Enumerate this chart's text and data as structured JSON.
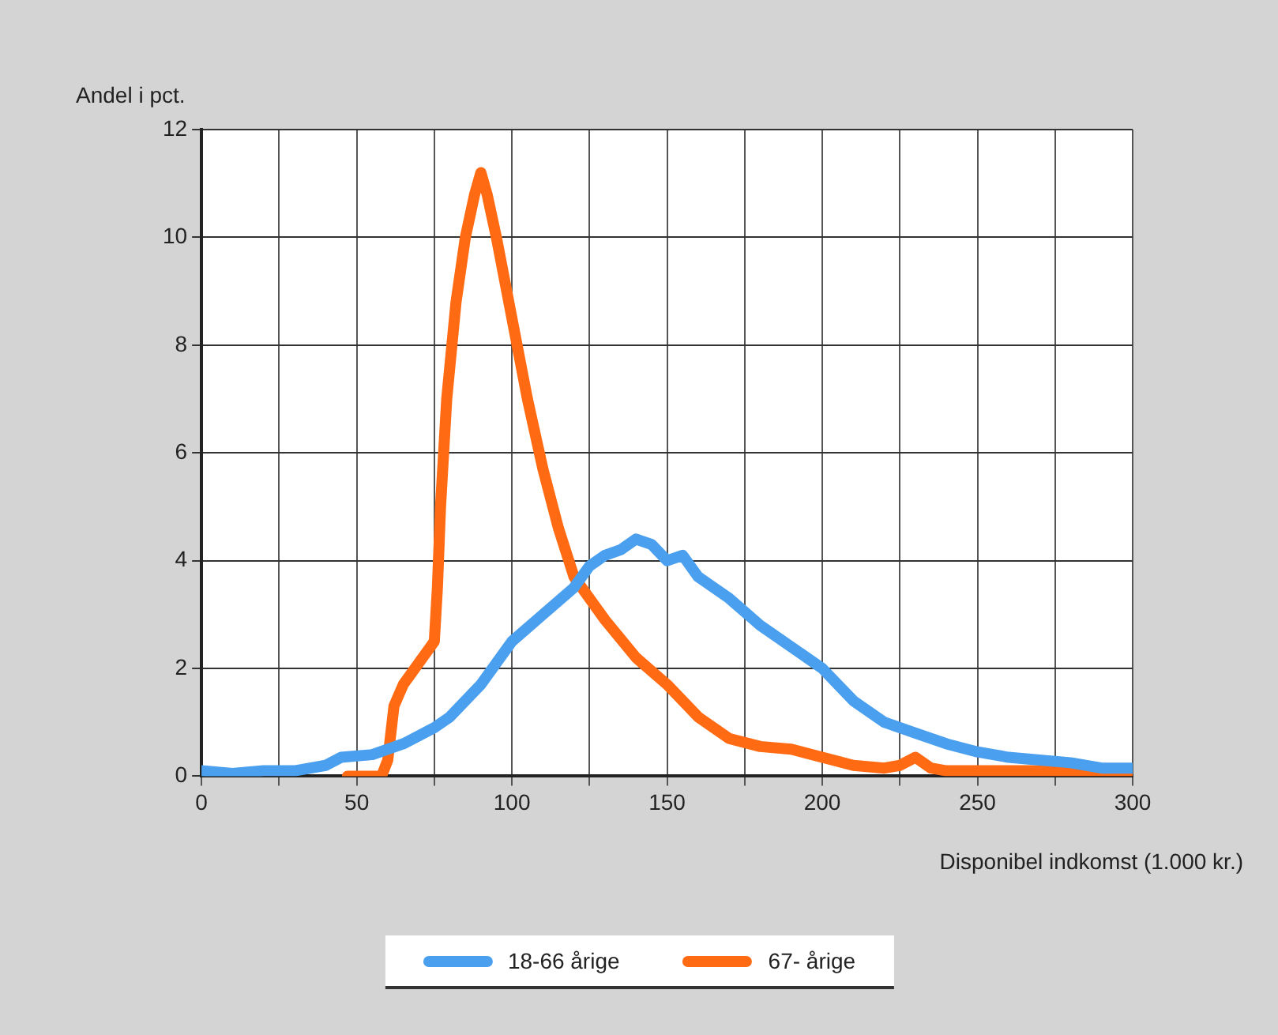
{
  "chart_data": {
    "type": "line",
    "ylabel": "Andel i pct.",
    "xlabel": "Disponibel indkomst (1.000 kr.)",
    "xlim": [
      0,
      300
    ],
    "xticks": [
      0,
      {
        "value": 25,
        "label": null
      },
      50,
      {
        "value": 75,
        "label": null
      },
      100,
      {
        "value": 125,
        "label": null
      },
      150,
      {
        "value": 175,
        "label": null
      },
      200,
      {
        "value": 225,
        "label": null
      },
      250,
      {
        "value": 275,
        "label": null
      },
      300
    ],
    "ylim": [
      0,
      12
    ],
    "yticks": [
      0,
      2,
      4,
      6,
      8,
      10,
      12
    ],
    "grid": true,
    "legend": "bottom",
    "marker": "none",
    "line_style": "solid",
    "series": [
      {
        "name": "18-66 årige",
        "color": "#4a9fee",
        "x": [
          0,
          10,
          20,
          30,
          40,
          45,
          55,
          65,
          75,
          80,
          90,
          100,
          110,
          120,
          125,
          130,
          135,
          140,
          145,
          150,
          155,
          160,
          170,
          180,
          190,
          200,
          210,
          220,
          230,
          240,
          250,
          260,
          270,
          280,
          290,
          300
        ],
        "values": [
          0.1,
          0.05,
          0.1,
          0.1,
          0.2,
          0.35,
          0.4,
          0.6,
          0.9,
          1.1,
          1.7,
          2.5,
          3.0,
          3.5,
          3.9,
          4.1,
          4.2,
          4.4,
          4.3,
          4.0,
          4.1,
          3.7,
          3.3,
          2.8,
          2.4,
          2.0,
          1.4,
          1.0,
          0.8,
          0.6,
          0.45,
          0.35,
          0.3,
          0.25,
          0.15,
          0.15
        ]
      },
      {
        "name": "67- årige",
        "color": "#ff6a13",
        "x": [
          47,
          58,
          60,
          62,
          65,
          70,
          75,
          76,
          77,
          79,
          82,
          85,
          88,
          90,
          92,
          95,
          100,
          105,
          110,
          115,
          120,
          130,
          140,
          150,
          160,
          170,
          180,
          190,
          200,
          210,
          220,
          225,
          230,
          235,
          240,
          300
        ],
        "values": [
          0,
          0,
          0.3,
          1.3,
          1.7,
          2.1,
          2.5,
          3.5,
          5,
          7,
          8.8,
          10.0,
          10.8,
          11.2,
          10.8,
          10.0,
          8.5,
          7.0,
          5.7,
          4.6,
          3.7,
          2.9,
          2.2,
          1.7,
          1.1,
          0.7,
          0.55,
          0.5,
          0.35,
          0.2,
          0.15,
          0.2,
          0.35,
          0.15,
          0.1,
          0.1
        ]
      }
    ]
  }
}
